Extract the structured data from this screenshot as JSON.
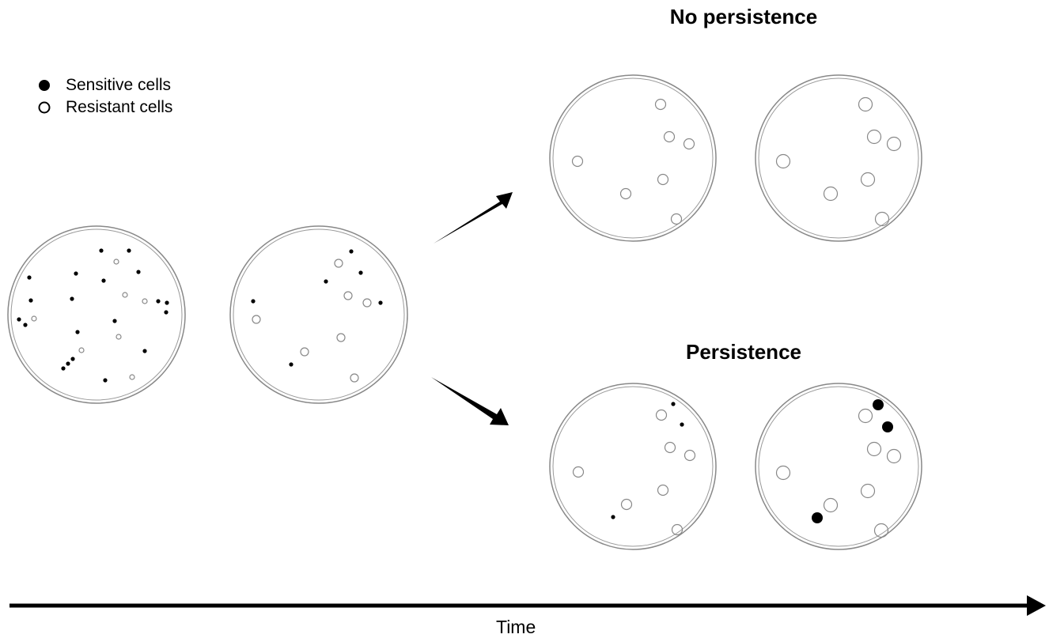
{
  "legend": {
    "items": [
      {
        "label": "Sensitive cells"
      },
      {
        "label": "Resistant cells"
      }
    ]
  },
  "outcomes": [
    {
      "label": "No persistence"
    },
    {
      "label": "Persistence"
    }
  ],
  "axis": {
    "label": "Time"
  }
}
